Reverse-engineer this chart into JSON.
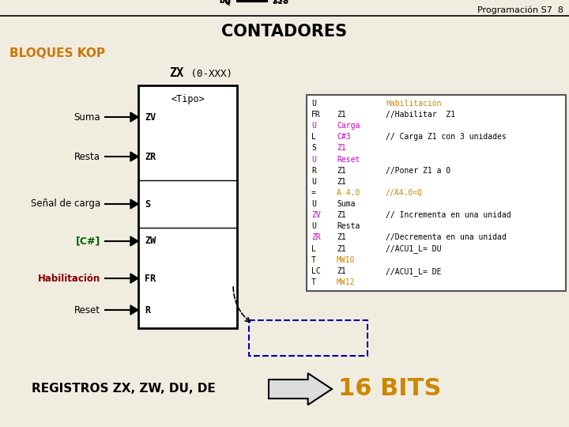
{
  "bg_color": "#f0ece0",
  "title_top_right": "Programación S7  8",
  "title_main": "CONTADORES",
  "subtitle": "BLOQUES KOP",
  "code_lines": [
    [
      "U",
      "",
      "Habilitación",
      "black",
      "black",
      "#cc8800"
    ],
    [
      "FR",
      "Z1",
      "//Habilitar  Z1",
      "black",
      "black",
      "black"
    ],
    [
      "U",
      "Carga",
      "",
      "#cc00cc",
      "#cc00cc",
      "black"
    ],
    [
      "L",
      "C#3",
      "// Carga Z1 con 3 unidades",
      "black",
      "#cc00cc",
      "black"
    ],
    [
      "S",
      "Z1",
      "",
      "black",
      "#cc00cc",
      "black"
    ],
    [
      "U",
      "Reset",
      "",
      "#cc00cc",
      "#cc00cc",
      "black"
    ],
    [
      "R",
      "Z1",
      "//Poner Z1 a 0",
      "black",
      "black",
      "black"
    ],
    [
      "U",
      "Z1",
      "",
      "black",
      "black",
      "black"
    ],
    [
      "=",
      "A 4.0",
      "//A4.0=Q",
      "black",
      "#cc8800",
      "#cc8800"
    ],
    [
      "U",
      "Suma",
      "",
      "black",
      "black",
      "black"
    ],
    [
      "ZV",
      "Z1",
      "// Incrementa en una unidad",
      "#cc00cc",
      "black",
      "black"
    ],
    [
      "U",
      "Resta",
      "",
      "black",
      "black",
      "black"
    ],
    [
      "ZR",
      "Z1",
      "//Decrementa en una unidad",
      "#cc00cc",
      "black",
      "black"
    ],
    [
      "L",
      "Z1",
      "//ACU1_L= DU",
      "black",
      "black",
      "black"
    ],
    [
      "T",
      "MW10",
      "",
      "black",
      "#cc8800",
      "black"
    ],
    [
      "LC",
      "Z1",
      "//ACU1_L= DE",
      "black",
      "black",
      "black"
    ],
    [
      "T",
      "MW12",
      "",
      "black",
      "#cc8800",
      "black"
    ]
  ]
}
